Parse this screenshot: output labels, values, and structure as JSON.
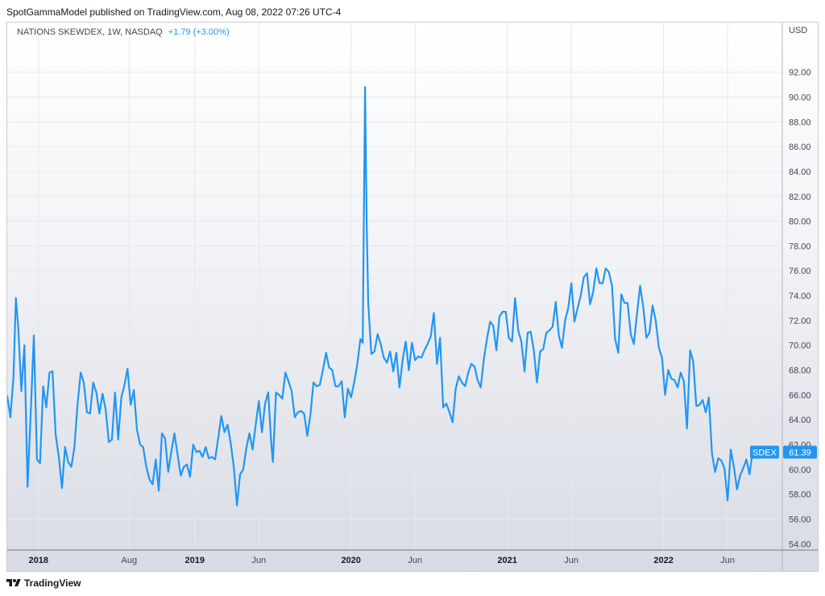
{
  "header": {
    "published": "SpotGammaModel published on TradingView.com, Aug 08, 2022 07:26 UTC-4"
  },
  "legend": {
    "symbol": "NATIONS SKEWDEX, 1W, NASDAQ",
    "change": "+1.79 (+3.00%)"
  },
  "price_badge": {
    "label": "SDEX",
    "value": "61.39"
  },
  "footer": {
    "brand": "TradingView",
    "logo_icon": "tradingview-logo-icon"
  },
  "colors": {
    "line": "#2196f3",
    "grid": "#e6e8ec",
    "axis_text": "#434651"
  },
  "chart_data": {
    "type": "line",
    "title": "",
    "xlabel": "",
    "ylabel": "",
    "currency_label": "USD",
    "ylim": [
      53.5,
      96.0
    ],
    "grid": true,
    "y_ticks": [
      54,
      56,
      58,
      60,
      62,
      64,
      66,
      68,
      70,
      72,
      74,
      76,
      78,
      80,
      82,
      84,
      86,
      88,
      90,
      92
    ],
    "y_tick_labels": [
      "54.00",
      "56.00",
      "58.00",
      "60.00",
      "62.00",
      "64.00",
      "66.00",
      "68.00",
      "70.00",
      "72.00",
      "74.00",
      "76.00",
      "78.00",
      "80.00",
      "82.00",
      "84.00",
      "86.00",
      "88.00",
      "90.00",
      "92.00"
    ],
    "x_ticks": [
      {
        "label": "2018",
        "t": 2018.0,
        "bold": true
      },
      {
        "label": "Aug",
        "t": 2018.58,
        "bold": false
      },
      {
        "label": "2019",
        "t": 2019.0,
        "bold": true
      },
      {
        "label": "Jun",
        "t": 2019.41,
        "bold": false
      },
      {
        "label": "2020",
        "t": 2020.0,
        "bold": true
      },
      {
        "label": "Jun",
        "t": 2020.41,
        "bold": false
      },
      {
        "label": "2021",
        "t": 2021.0,
        "bold": true
      },
      {
        "label": "Jun",
        "t": 2021.41,
        "bold": false
      },
      {
        "label": "2022",
        "t": 2022.0,
        "bold": true
      },
      {
        "label": "Jun",
        "t": 2022.41,
        "bold": false
      }
    ],
    "xlim": [
      2017.8,
      2022.76
    ],
    "series": [
      {
        "name": "SDEX",
        "points": [
          [
            2017.8,
            65.9
          ],
          [
            2017.82,
            64.2
          ],
          [
            2017.84,
            67.5
          ],
          [
            2017.855,
            73.8
          ],
          [
            2017.87,
            71.5
          ],
          [
            2017.89,
            66.3
          ],
          [
            2017.91,
            70.0
          ],
          [
            2017.93,
            58.6
          ],
          [
            2017.95,
            64.5
          ],
          [
            2017.97,
            70.8
          ],
          [
            2017.99,
            60.8
          ],
          [
            2018.01,
            60.5
          ],
          [
            2018.03,
            66.7
          ],
          [
            2018.05,
            65.0
          ],
          [
            2018.07,
            67.8
          ],
          [
            2018.09,
            67.9
          ],
          [
            2018.11,
            62.8
          ],
          [
            2018.13,
            61.0
          ],
          [
            2018.15,
            58.5
          ],
          [
            2018.17,
            61.8
          ],
          [
            2018.19,
            60.6
          ],
          [
            2018.21,
            60.2
          ],
          [
            2018.23,
            61.8
          ],
          [
            2018.25,
            65.3
          ],
          [
            2018.27,
            67.8
          ],
          [
            2018.29,
            67.0
          ],
          [
            2018.31,
            64.6
          ],
          [
            2018.33,
            64.5
          ],
          [
            2018.35,
            67.0
          ],
          [
            2018.37,
            66.2
          ],
          [
            2018.39,
            64.5
          ],
          [
            2018.41,
            66.1
          ],
          [
            2018.43,
            64.8
          ],
          [
            2018.45,
            62.2
          ],
          [
            2018.47,
            62.4
          ],
          [
            2018.49,
            66.2
          ],
          [
            2018.51,
            62.4
          ],
          [
            2018.53,
            65.8
          ],
          [
            2018.55,
            66.8
          ],
          [
            2018.57,
            68.1
          ],
          [
            2018.59,
            65.2
          ],
          [
            2018.61,
            66.4
          ],
          [
            2018.63,
            63.2
          ],
          [
            2018.65,
            62.0
          ],
          [
            2018.67,
            61.8
          ],
          [
            2018.69,
            60.2
          ],
          [
            2018.71,
            59.2
          ],
          [
            2018.73,
            58.8
          ],
          [
            2018.75,
            60.8
          ],
          [
            2018.77,
            58.3
          ],
          [
            2018.79,
            62.9
          ],
          [
            2018.81,
            62.5
          ],
          [
            2018.83,
            59.8
          ],
          [
            2018.85,
            61.4
          ],
          [
            2018.87,
            62.9
          ],
          [
            2018.89,
            61.2
          ],
          [
            2018.91,
            59.5
          ],
          [
            2018.93,
            60.2
          ],
          [
            2018.95,
            60.4
          ],
          [
            2018.97,
            59.4
          ],
          [
            2018.99,
            62.0
          ],
          [
            2019.01,
            61.4
          ],
          [
            2019.03,
            61.5
          ],
          [
            2019.05,
            61.0
          ],
          [
            2019.07,
            61.8
          ],
          [
            2019.09,
            60.9
          ],
          [
            2019.11,
            61.0
          ],
          [
            2019.13,
            60.8
          ],
          [
            2019.15,
            62.5
          ],
          [
            2019.17,
            64.3
          ],
          [
            2019.19,
            63.0
          ],
          [
            2019.21,
            63.6
          ],
          [
            2019.23,
            62.1
          ],
          [
            2019.25,
            60.2
          ],
          [
            2019.27,
            57.1
          ],
          [
            2019.29,
            59.6
          ],
          [
            2019.31,
            60.0
          ],
          [
            2019.33,
            61.7
          ],
          [
            2019.35,
            62.9
          ],
          [
            2019.37,
            61.6
          ],
          [
            2019.39,
            63.6
          ],
          [
            2019.41,
            65.5
          ],
          [
            2019.43,
            63.0
          ],
          [
            2019.45,
            65.3
          ],
          [
            2019.47,
            66.2
          ],
          [
            2019.49,
            62.0
          ],
          [
            2019.5,
            60.6
          ],
          [
            2019.52,
            66.2
          ],
          [
            2019.54,
            66.0
          ],
          [
            2019.56,
            65.7
          ],
          [
            2019.58,
            67.8
          ],
          [
            2019.6,
            67.1
          ],
          [
            2019.62,
            66.3
          ],
          [
            2019.64,
            64.2
          ],
          [
            2019.66,
            64.6
          ],
          [
            2019.68,
            64.7
          ],
          [
            2019.7,
            64.5
          ],
          [
            2019.72,
            62.7
          ],
          [
            2019.74,
            64.4
          ],
          [
            2019.76,
            67.0
          ],
          [
            2019.78,
            66.7
          ],
          [
            2019.8,
            66.8
          ],
          [
            2019.82,
            68.0
          ],
          [
            2019.84,
            69.4
          ],
          [
            2019.86,
            68.2
          ],
          [
            2019.88,
            68.0
          ],
          [
            2019.9,
            66.7
          ],
          [
            2019.92,
            66.7
          ],
          [
            2019.94,
            67.1
          ],
          [
            2019.96,
            64.2
          ],
          [
            2019.98,
            66.5
          ],
          [
            2020.0,
            65.8
          ],
          [
            2020.02,
            67.0
          ],
          [
            2020.04,
            68.5
          ],
          [
            2020.06,
            70.5
          ],
          [
            2020.075,
            70.2
          ],
          [
            2020.09,
            90.8
          ],
          [
            2020.1,
            80.0
          ],
          [
            2020.11,
            73.5
          ],
          [
            2020.13,
            69.3
          ],
          [
            2020.15,
            69.5
          ],
          [
            2020.17,
            70.9
          ],
          [
            2020.19,
            70.1
          ],
          [
            2020.21,
            69.0
          ],
          [
            2020.23,
            68.6
          ],
          [
            2020.25,
            69.5
          ],
          [
            2020.27,
            67.9
          ],
          [
            2020.29,
            69.4
          ],
          [
            2020.31,
            66.6
          ],
          [
            2020.33,
            68.8
          ],
          [
            2020.35,
            70.3
          ],
          [
            2020.37,
            68.0
          ],
          [
            2020.39,
            70.2
          ],
          [
            2020.41,
            68.8
          ],
          [
            2020.43,
            69.1
          ],
          [
            2020.45,
            69.0
          ],
          [
            2020.47,
            69.6
          ],
          [
            2020.49,
            70.1
          ],
          [
            2020.51,
            70.7
          ],
          [
            2020.53,
            72.6
          ],
          [
            2020.55,
            68.5
          ],
          [
            2020.57,
            70.6
          ],
          [
            2020.59,
            65.0
          ],
          [
            2020.61,
            65.3
          ],
          [
            2020.63,
            64.6
          ],
          [
            2020.65,
            63.8
          ],
          [
            2020.67,
            66.5
          ],
          [
            2020.69,
            67.5
          ],
          [
            2020.71,
            67.0
          ],
          [
            2020.73,
            66.7
          ],
          [
            2020.75,
            67.8
          ],
          [
            2020.77,
            68.5
          ],
          [
            2020.79,
            68.3
          ],
          [
            2020.81,
            67.2
          ],
          [
            2020.83,
            66.6
          ],
          [
            2020.85,
            68.9
          ],
          [
            2020.87,
            70.5
          ],
          [
            2020.89,
            71.9
          ],
          [
            2020.91,
            71.6
          ],
          [
            2020.93,
            69.6
          ],
          [
            2020.95,
            72.3
          ],
          [
            2020.97,
            72.7
          ],
          [
            2020.99,
            72.7
          ],
          [
            2021.01,
            70.6
          ],
          [
            2021.03,
            70.3
          ],
          [
            2021.05,
            73.8
          ],
          [
            2021.07,
            71.2
          ],
          [
            2021.09,
            70.3
          ],
          [
            2021.11,
            67.9
          ],
          [
            2021.13,
            71.0
          ],
          [
            2021.15,
            71.1
          ],
          [
            2021.17,
            69.6
          ],
          [
            2021.19,
            67.0
          ],
          [
            2021.21,
            69.5
          ],
          [
            2021.23,
            69.7
          ],
          [
            2021.25,
            71.0
          ],
          [
            2021.27,
            71.2
          ],
          [
            2021.29,
            71.5
          ],
          [
            2021.31,
            73.5
          ],
          [
            2021.33,
            70.8
          ],
          [
            2021.35,
            69.8
          ],
          [
            2021.37,
            72.0
          ],
          [
            2021.39,
            73.0
          ],
          [
            2021.41,
            75.0
          ],
          [
            2021.43,
            71.9
          ],
          [
            2021.45,
            73.0
          ],
          [
            2021.47,
            74.0
          ],
          [
            2021.49,
            75.5
          ],
          [
            2021.51,
            75.8
          ],
          [
            2021.53,
            73.3
          ],
          [
            2021.55,
            74.3
          ],
          [
            2021.57,
            76.2
          ],
          [
            2021.59,
            75.0
          ],
          [
            2021.61,
            75.0
          ],
          [
            2021.63,
            76.2
          ],
          [
            2021.65,
            75.9
          ],
          [
            2021.67,
            74.8
          ],
          [
            2021.69,
            70.5
          ],
          [
            2021.71,
            69.4
          ],
          [
            2021.73,
            74.1
          ],
          [
            2021.75,
            73.4
          ],
          [
            2021.77,
            73.4
          ],
          [
            2021.79,
            70.9
          ],
          [
            2021.81,
            70.1
          ],
          [
            2021.83,
            72.5
          ],
          [
            2021.85,
            74.8
          ],
          [
            2021.87,
            73.1
          ],
          [
            2021.89,
            70.6
          ],
          [
            2021.91,
            71.0
          ],
          [
            2021.93,
            73.2
          ],
          [
            2021.95,
            72.0
          ],
          [
            2021.97,
            69.8
          ],
          [
            2021.99,
            69.0
          ],
          [
            2022.01,
            66.0
          ],
          [
            2022.03,
            68.0
          ],
          [
            2022.05,
            67.3
          ],
          [
            2022.07,
            67.2
          ],
          [
            2022.09,
            66.6
          ],
          [
            2022.11,
            67.8
          ],
          [
            2022.13,
            67.1
          ],
          [
            2022.15,
            63.3
          ],
          [
            2022.17,
            69.6
          ],
          [
            2022.19,
            68.7
          ],
          [
            2022.21,
            65.1
          ],
          [
            2022.23,
            65.2
          ],
          [
            2022.25,
            65.6
          ],
          [
            2022.27,
            64.6
          ],
          [
            2022.29,
            65.8
          ],
          [
            2022.31,
            61.3
          ],
          [
            2022.33,
            59.8
          ],
          [
            2022.35,
            60.9
          ],
          [
            2022.37,
            60.7
          ],
          [
            2022.39,
            60.1
          ],
          [
            2022.41,
            57.5
          ],
          [
            2022.43,
            61.6
          ],
          [
            2022.45,
            60.2
          ],
          [
            2022.47,
            58.4
          ],
          [
            2022.49,
            59.5
          ],
          [
            2022.51,
            60.1
          ],
          [
            2022.53,
            60.8
          ],
          [
            2022.55,
            59.6
          ],
          [
            2022.57,
            61.39
          ]
        ]
      }
    ]
  }
}
